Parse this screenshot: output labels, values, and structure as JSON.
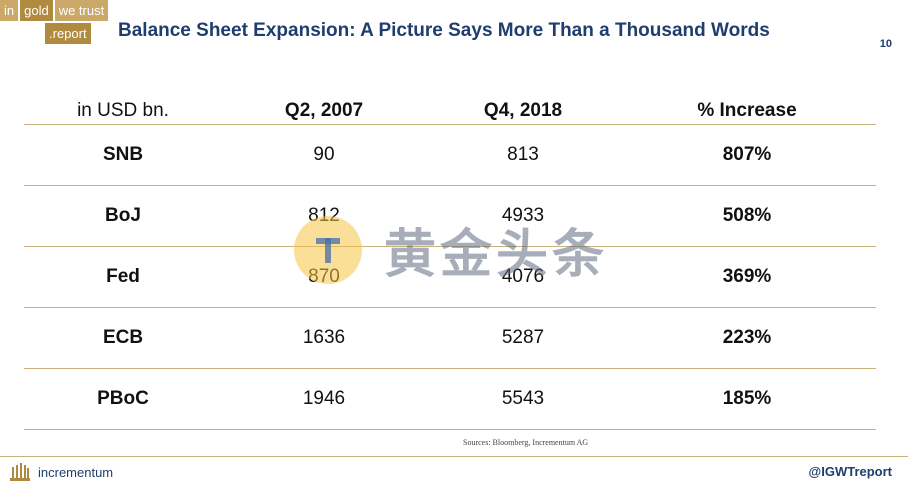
{
  "logo": {
    "line1": [
      "in",
      "gold",
      "we trust"
    ],
    "line2": ".report"
  },
  "title": "Balance Sheet Expansion: A Picture Says More Than a Thousand Words",
  "page_number": "10",
  "table": {
    "headers": [
      "in USD bn.",
      "Q2, 2007",
      "Q4, 2018",
      "% Increase"
    ],
    "rows": [
      [
        "SNB",
        "90",
        "813",
        "807%"
      ],
      [
        "BoJ",
        "812",
        "4933",
        "508%"
      ],
      [
        "Fed",
        "870",
        "4076",
        "369%"
      ],
      [
        "ECB",
        "1636",
        "5287",
        "223%"
      ],
      [
        "PBoC",
        "1946",
        "5543",
        "185%"
      ]
    ]
  },
  "source": "Sources: Bloomberg, Incrementum AG",
  "footer": {
    "brand": "incrementum",
    "handle": "@IGWTreport"
  },
  "watermark": {
    "letter": "T",
    "text": "黄金头条"
  },
  "colors": {
    "accent": "#b08a3e",
    "title": "#1f3d6e",
    "rule": "#c8b27e"
  }
}
